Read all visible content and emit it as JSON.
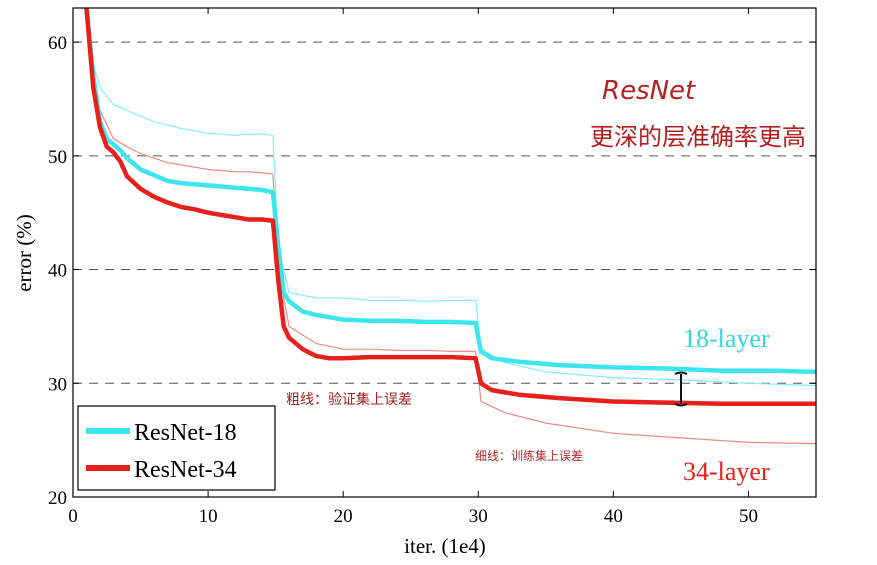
{
  "chart_data": {
    "type": "line",
    "xlabel": "iter. (1e4)",
    "ylabel": "error (%)",
    "xlim": [
      0,
      55
    ],
    "ylim": [
      20,
      63
    ],
    "xticks": [
      0,
      10,
      20,
      30,
      40,
      50
    ],
    "yticks": [
      20,
      30,
      40,
      50,
      60
    ],
    "grid": "horizontal dashed",
    "legend": {
      "placement": "bottom-left",
      "entries": [
        "ResNet-18",
        "ResNet-34"
      ]
    },
    "series": [
      {
        "name": "ResNet-18",
        "style": "thick",
        "role": "validation",
        "color": "#3de6ee",
        "x": [
          1.0,
          1.5,
          2,
          2.5,
          3,
          3.5,
          4,
          5,
          6,
          7,
          8,
          9,
          10,
          11,
          12,
          13,
          14,
          14.8,
          15.2,
          15.6,
          16,
          17,
          18,
          19,
          20,
          22,
          24,
          26,
          28,
          29.8,
          30.2,
          31,
          33,
          36,
          40,
          44,
          48,
          52,
          55
        ],
        "y": [
          63,
          57,
          53,
          51.5,
          51,
          50.5,
          49.8,
          48.8,
          48.3,
          47.8,
          47.6,
          47.5,
          47.4,
          47.3,
          47.2,
          47.1,
          47.0,
          46.8,
          42,
          38,
          37.2,
          36.3,
          36.0,
          35.8,
          35.6,
          35.5,
          35.5,
          35.4,
          35.4,
          35.3,
          32.8,
          32.2,
          31.9,
          31.6,
          31.4,
          31.3,
          31.1,
          31.1,
          31.0
        ]
      },
      {
        "name": "ResNet-34",
        "style": "thick",
        "role": "validation",
        "color": "#e8201c",
        "x": [
          1.0,
          1.5,
          2,
          2.5,
          3,
          3.5,
          4,
          5,
          6,
          7,
          8,
          9,
          10,
          11,
          12,
          13,
          14,
          14.8,
          15.2,
          15.6,
          16,
          17,
          18,
          19,
          20,
          22,
          24,
          26,
          28,
          29.8,
          30.2,
          31,
          33,
          36,
          40,
          44,
          48,
          52,
          55
        ],
        "y": [
          63,
          56,
          52.5,
          50.8,
          50.3,
          49.5,
          48.2,
          47.1,
          46.4,
          45.9,
          45.5,
          45.3,
          45.0,
          44.8,
          44.6,
          44.4,
          44.4,
          44.3,
          39,
          35,
          34.0,
          33.0,
          32.4,
          32.2,
          32.2,
          32.3,
          32.3,
          32.3,
          32.3,
          32.2,
          30.0,
          29.4,
          29.0,
          28.7,
          28.4,
          28.3,
          28.2,
          28.2,
          28.2
        ]
      },
      {
        "name": "ResNet-18",
        "style": "thin",
        "role": "training",
        "color": "#86edf2",
        "x": [
          1.0,
          1.5,
          2,
          3,
          4,
          5,
          6,
          7,
          8,
          9,
          10,
          11,
          12,
          13,
          14,
          14.8,
          15.2,
          16,
          18,
          20,
          22,
          24,
          26,
          28,
          29.8,
          30.2,
          32,
          35,
          40,
          45,
          50,
          55
        ],
        "y": [
          63,
          58,
          56,
          54.5,
          54,
          53.5,
          53,
          52.7,
          52.4,
          52.2,
          52.0,
          51.9,
          51.8,
          51.9,
          51.9,
          51.8,
          42,
          38,
          37.5,
          37.5,
          37.3,
          37.3,
          37.2,
          37.3,
          37.3,
          33.0,
          31.8,
          31.0,
          30.5,
          30.3,
          30.0,
          29.8
        ]
      },
      {
        "name": "ResNet-34",
        "style": "thin",
        "role": "training",
        "color": "#ef8a86",
        "x": [
          1.0,
          1.5,
          2,
          3,
          4,
          5,
          6,
          7,
          8,
          9,
          10,
          11,
          12,
          13,
          14,
          14.8,
          15.2,
          16,
          18,
          20,
          22,
          24,
          26,
          28,
          29.8,
          30.2,
          32,
          35,
          40,
          45,
          50,
          55
        ],
        "y": [
          63,
          57,
          54,
          51.5,
          50.8,
          50.2,
          49.8,
          49.4,
          49.2,
          49.0,
          48.8,
          48.7,
          48.6,
          48.6,
          48.5,
          48.4,
          40,
          35,
          33.5,
          33.0,
          33.0,
          32.9,
          32.9,
          32.8,
          32.8,
          28.4,
          27.4,
          26.5,
          25.6,
          25.2,
          24.8,
          24.7
        ]
      }
    ],
    "annotations": {
      "label_18": "18-layer",
      "label_34": "34-layer",
      "note_title": "ResNet",
      "note_subtitle": "更深的层准确率更高",
      "note_thick": "粗线：验证集上误差",
      "note_thin": "细线：训练集上误差"
    }
  }
}
